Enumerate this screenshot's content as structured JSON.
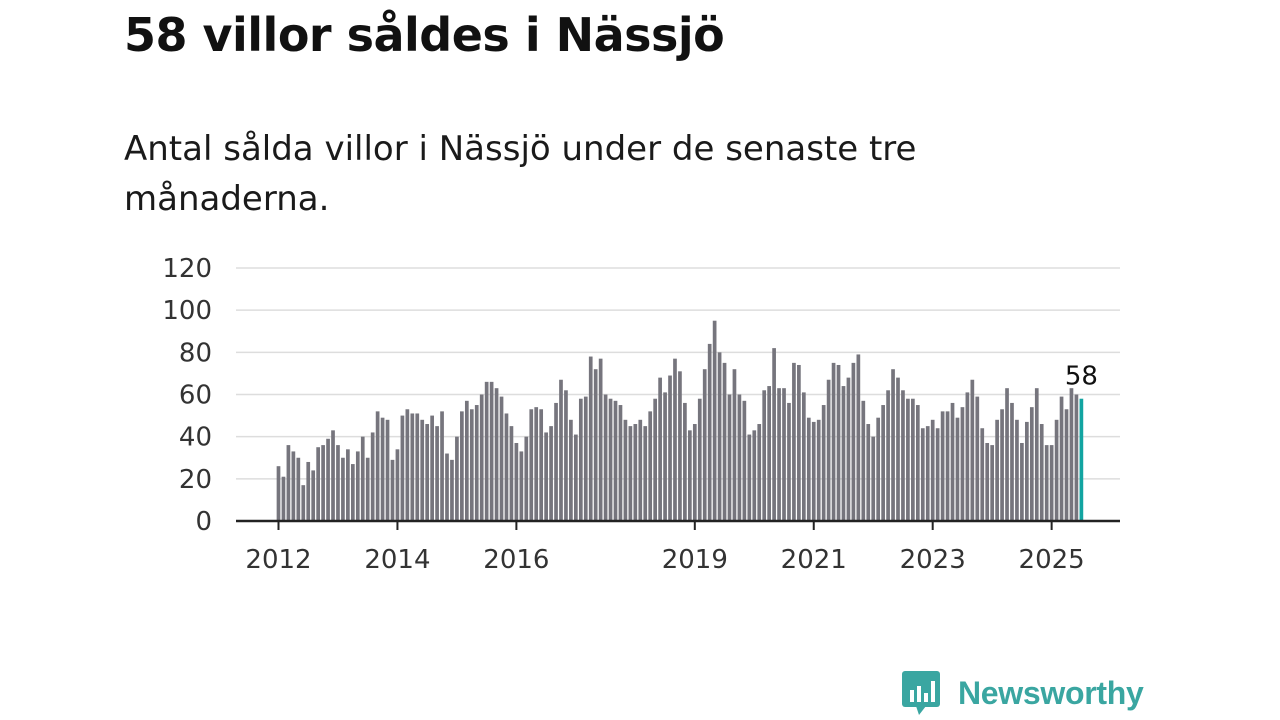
{
  "header": {
    "title": "58 villor såldes i Nässjö",
    "subtitle": "Antal sålda villor i Nässjö under de senaste tre månaderna."
  },
  "brand": {
    "name": "Newsworthy",
    "color": "#3aa6a1"
  },
  "colors": {
    "bar": "#76757d",
    "highlight": "#12a4a1",
    "grid": "#dddddd",
    "axis": "#222222"
  },
  "chart_data": {
    "type": "bar",
    "title": "",
    "xlabel": "",
    "ylabel": "",
    "ylim": [
      0,
      120
    ],
    "yticks": [
      0,
      20,
      40,
      60,
      80,
      100,
      120
    ],
    "xticks": [
      {
        "label": "2012",
        "year": 2012
      },
      {
        "label": "2014",
        "year": 2014
      },
      {
        "label": "2016",
        "year": 2016
      },
      {
        "label": "2019",
        "year": 2019
      },
      {
        "label": "2021",
        "year": 2021
      },
      {
        "label": "2023",
        "year": 2023
      },
      {
        "label": "2025",
        "year": 2025
      }
    ],
    "start": "2012-01",
    "frequency": "monthly",
    "values": [
      26,
      21,
      36,
      33,
      30,
      17,
      28,
      24,
      35,
      36,
      39,
      43,
      36,
      30,
      34,
      27,
      33,
      40,
      30,
      42,
      52,
      49,
      48,
      29,
      34,
      50,
      53,
      51,
      51,
      48,
      46,
      50,
      45,
      52,
      32,
      29,
      40,
      52,
      57,
      53,
      55,
      60,
      66,
      66,
      63,
      59,
      51,
      45,
      37,
      33,
      40,
      53,
      54,
      53,
      42,
      45,
      56,
      67,
      62,
      48,
      41,
      58,
      59,
      78,
      72,
      77,
      60,
      58,
      57,
      55,
      48,
      45,
      46,
      48,
      45,
      52,
      58,
      68,
      61,
      69,
      77,
      71,
      56,
      43,
      46,
      58,
      72,
      84,
      95,
      80,
      75,
      60,
      72,
      60,
      57,
      41,
      43,
      46,
      62,
      64,
      82,
      63,
      63,
      56,
      75,
      74,
      61,
      49,
      47,
      48,
      55,
      67,
      75,
      74,
      64,
      68,
      75,
      79,
      57,
      46,
      40,
      49,
      55,
      62,
      72,
      68,
      62,
      58,
      58,
      55,
      44,
      45,
      48,
      44,
      52,
      52,
      56,
      49,
      54,
      61,
      67,
      59,
      44,
      37,
      36,
      48,
      53,
      63,
      56,
      48,
      37,
      47,
      54,
      63,
      46,
      36,
      36,
      48,
      59,
      53,
      63,
      60,
      58
    ],
    "highlight": {
      "index": 162,
      "value": 58,
      "label": "58"
    }
  }
}
